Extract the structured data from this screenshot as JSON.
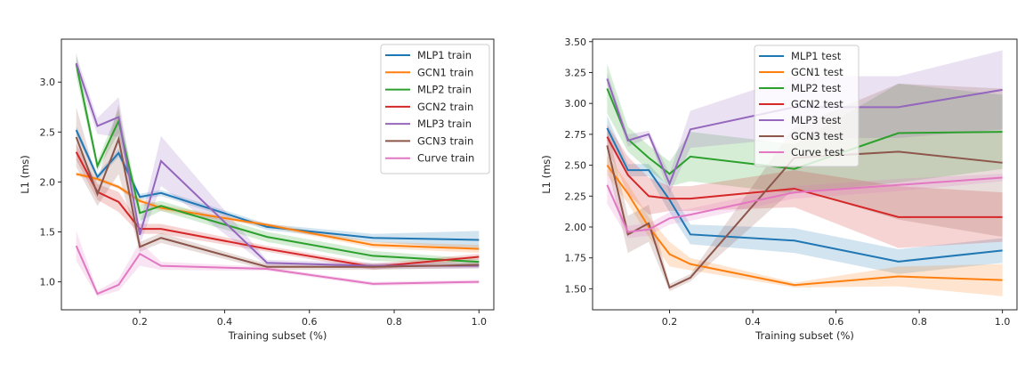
{
  "chart_data": [
    {
      "type": "line",
      "title": "",
      "xlabel": "Training subset (%)",
      "ylabel": "L1 (ms)",
      "xlim": [
        0.015,
        1.035
      ],
      "ylim": [
        0.72,
        3.43
      ],
      "xticks": [
        0.2,
        0.4,
        0.6,
        0.8,
        1.0
      ],
      "xtick_labels": [
        "0.2",
        "0.4",
        "0.6",
        "0.8",
        "1.0"
      ],
      "yticks": [
        1.0,
        1.5,
        2.0,
        2.5,
        3.0
      ],
      "ytick_labels": [
        "1.0",
        "1.5",
        "2.0",
        "2.5",
        "3.0"
      ],
      "grid": false,
      "legend_position": "top-right",
      "x": [
        0.05,
        0.1,
        0.15,
        0.2,
        0.25,
        0.5,
        0.75,
        1.0
      ],
      "series": [
        {
          "name": "MLP1 train",
          "color": "#1f77b4",
          "values": [
            2.52,
            2.05,
            2.29,
            1.85,
            1.89,
            1.55,
            1.44,
            1.42
          ],
          "band": [
            0.04,
            0.03,
            0.04,
            0.03,
            0.03,
            0.03,
            0.04,
            0.09
          ]
        },
        {
          "name": "GCN1 train",
          "color": "#ff7f0e",
          "values": [
            2.08,
            2.03,
            1.95,
            1.81,
            1.74,
            1.57,
            1.37,
            1.33
          ],
          "band": [
            0.02,
            0.02,
            0.02,
            0.03,
            0.03,
            0.02,
            0.03,
            0.04
          ]
        },
        {
          "name": "MLP2 train",
          "color": "#2ca02c",
          "values": [
            3.18,
            2.16,
            2.61,
            1.69,
            1.76,
            1.45,
            1.26,
            1.2
          ],
          "band": [
            0.12,
            0.05,
            0.12,
            0.08,
            0.05,
            0.05,
            0.05,
            0.03
          ]
        },
        {
          "name": "GCN2 train",
          "color": "#d62728",
          "values": [
            2.3,
            1.9,
            1.8,
            1.53,
            1.53,
            1.33,
            1.15,
            1.25
          ],
          "band": [
            0.08,
            0.08,
            0.1,
            0.05,
            0.05,
            0.03,
            0.03,
            0.03
          ]
        },
        {
          "name": "MLP3 train",
          "color": "#9467bd",
          "values": [
            3.19,
            2.56,
            2.65,
            1.47,
            2.21,
            1.19,
            1.16,
            1.16
          ],
          "band": [
            0.08,
            0.08,
            0.2,
            0.1,
            0.25,
            0.03,
            0.03,
            0.03
          ]
        },
        {
          "name": "GCN3 train",
          "color": "#8c564b",
          "values": [
            2.45,
            1.88,
            2.43,
            1.35,
            1.44,
            1.15,
            1.15,
            1.17
          ],
          "band": [
            0.3,
            0.12,
            0.35,
            0.05,
            0.05,
            0.03,
            0.03,
            0.03
          ]
        },
        {
          "name": "Curve train",
          "color": "#e377c2",
          "values": [
            1.36,
            0.88,
            0.97,
            1.28,
            1.16,
            1.13,
            0.98,
            1.0
          ],
          "band": [
            0.15,
            0.03,
            0.06,
            0.12,
            0.04,
            0.02,
            0.02,
            0.02
          ]
        }
      ]
    },
    {
      "type": "line",
      "title": "",
      "xlabel": "Training subset (%)",
      "ylabel": "L1 (ms)",
      "xlim": [
        0.015,
        1.035
      ],
      "ylim": [
        1.33,
        3.52
      ],
      "xticks": [
        0.2,
        0.4,
        0.6,
        0.8,
        1.0
      ],
      "xtick_labels": [
        "0.2",
        "0.4",
        "0.6",
        "0.8",
        "1.0"
      ],
      "yticks": [
        1.5,
        1.75,
        2.0,
        2.25,
        2.5,
        2.75,
        3.0,
        3.25,
        3.5
      ],
      "ytick_labels": [
        "1.50",
        "1.75",
        "2.00",
        "2.25",
        "2.50",
        "2.75",
        "3.00",
        "3.25",
        "3.50"
      ],
      "grid": false,
      "legend_position": "top-center",
      "x": [
        0.05,
        0.1,
        0.15,
        0.2,
        0.25,
        0.5,
        0.75,
        1.0
      ],
      "series": [
        {
          "name": "MLP1 test",
          "color": "#1f77b4",
          "values": [
            2.8,
            2.46,
            2.46,
            2.22,
            1.94,
            1.89,
            1.72,
            1.81
          ],
          "band": [
            0.1,
            0.05,
            0.05,
            0.1,
            0.08,
            0.1,
            0.1,
            0.1
          ]
        },
        {
          "name": "GCN1 test",
          "color": "#ff7f0e",
          "values": [
            2.5,
            2.27,
            2.0,
            1.78,
            1.7,
            1.53,
            1.6,
            1.57
          ],
          "band": [
            0.08,
            0.08,
            0.08,
            0.1,
            0.05,
            0.02,
            0.08,
            0.13
          ]
        },
        {
          "name": "MLP2 test",
          "color": "#2ca02c",
          "values": [
            3.12,
            2.71,
            2.56,
            2.43,
            2.57,
            2.47,
            2.76,
            2.77
          ],
          "band": [
            0.2,
            0.1,
            0.1,
            0.1,
            0.2,
            0.2,
            0.4,
            0.3
          ]
        },
        {
          "name": "GCN2 test",
          "color": "#d62728",
          "values": [
            2.73,
            2.42,
            2.25,
            2.23,
            2.23,
            2.31,
            2.08,
            2.08
          ],
          "band": [
            0.1,
            0.15,
            0.15,
            0.1,
            0.1,
            0.15,
            0.25,
            0.2
          ]
        },
        {
          "name": "MLP3 test",
          "color": "#9467bd",
          "values": [
            3.2,
            2.7,
            2.75,
            2.35,
            2.79,
            2.97,
            2.97,
            3.11
          ],
          "band": [
            0.05,
            0.05,
            0.03,
            0.08,
            0.15,
            0.25,
            0.25,
            0.32
          ]
        },
        {
          "name": "GCN3 test",
          "color": "#8c564b",
          "values": [
            2.66,
            1.94,
            2.03,
            1.51,
            1.59,
            2.56,
            2.61,
            2.52
          ],
          "band": [
            0.15,
            0.15,
            0.15,
            0.03,
            0.03,
            0.25,
            0.55,
            0.6
          ]
        },
        {
          "name": "Curve test",
          "color": "#e377c2",
          "values": [
            2.34,
            1.96,
            1.98,
            2.07,
            2.1,
            2.28,
            2.34,
            2.4
          ],
          "band": [
            0.15,
            0.05,
            0.05,
            0.05,
            0.05,
            0.05,
            0.05,
            0.03
          ]
        }
      ]
    }
  ]
}
